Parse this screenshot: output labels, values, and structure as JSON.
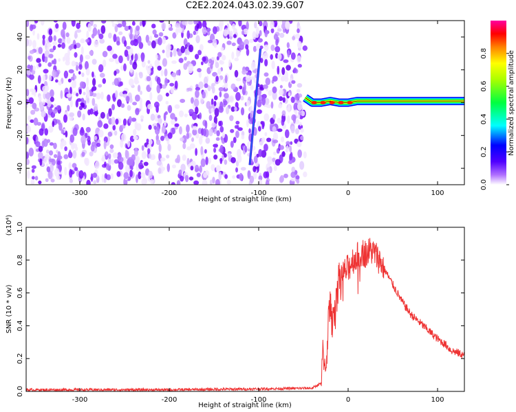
{
  "title": "C2E2.2024.043.02.39.G07",
  "chart_data": [
    {
      "type": "heatmap",
      "xlabel": "Height of straight line (km)",
      "ylabel": "Frequency (Hz)",
      "xlim": [
        -360,
        130
      ],
      "ylim": [
        -50,
        50
      ],
      "x_ticks": [
        -300,
        -200,
        -100,
        0,
        100
      ],
      "x_tick_labels": [
        "-300",
        "-200",
        "-100",
        "0",
        "100"
      ],
      "y_ticks": [
        -40,
        -20,
        0,
        20,
        40
      ],
      "y_tick_labels": [
        "-40",
        "-20",
        "0",
        "20",
        "40"
      ],
      "noise_region_x": [
        -360,
        -48
      ],
      "streak": {
        "x": [
          -110,
          -98
        ],
        "y": [
          -38,
          33
        ]
      },
      "signal_track": {
        "x": [
          -48,
          -40,
          -30,
          -20,
          -10,
          0,
          10,
          20,
          40,
          60,
          80,
          90,
          100,
          130
        ],
        "y": [
          3,
          0,
          0,
          1,
          0,
          0,
          1,
          1,
          1,
          1,
          1,
          1,
          1,
          1
        ]
      },
      "colorbar": {
        "label": "Normalized spectral amplitude",
        "range": [
          0,
          1
        ],
        "ticks": [
          0.0,
          0.2,
          0.4,
          0.6,
          0.8
        ],
        "tick_labels": [
          "0.0",
          "0.2",
          "0.4",
          "0.6",
          "0.8"
        ],
        "colors": [
          "#ffffff",
          "#7b00ff",
          "#0000ff",
          "#00ffff",
          "#00ff00",
          "#ffff00",
          "#ff7f00",
          "#ff0000",
          "#ff00a0"
        ]
      }
    },
    {
      "type": "line",
      "xlabel": "Height of straight line (km)",
      "ylabel": "SNR (10 * v/v)",
      "y_scale_label": "(x10⁴)",
      "xlim": [
        -360,
        130
      ],
      "ylim": [
        0,
        1.0
      ],
      "x_ticks": [
        -300,
        -200,
        -100,
        0,
        100
      ],
      "x_tick_labels": [
        "-300",
        "-200",
        "-100",
        "0",
        "100"
      ],
      "y_ticks": [
        0.0,
        0.2,
        0.4,
        0.6,
        0.8,
        1.0
      ],
      "y_tick_labels": [
        "0.0",
        "0.2",
        "0.4",
        "0.6",
        "0.8",
        "1.0"
      ],
      "series": [
        {
          "color": "#ee3333",
          "x": [
            -360,
            -300,
            -200,
            -100,
            -40,
            -30,
            -28,
            -26,
            -24,
            -22,
            -20,
            -18,
            -15,
            -12,
            -10,
            -5,
            0,
            5,
            10,
            15,
            20,
            25,
            30,
            35,
            40,
            45,
            50,
            55,
            60,
            70,
            80,
            90,
            100,
            105,
            110,
            115,
            120,
            125,
            130
          ],
          "y": [
            0.01,
            0.01,
            0.01,
            0.015,
            0.02,
            0.05,
            0.25,
            0.15,
            0.2,
            0.45,
            0.55,
            0.4,
            0.55,
            0.65,
            0.7,
            0.72,
            0.75,
            0.8,
            0.82,
            0.85,
            0.84,
            0.86,
            0.84,
            0.8,
            0.75,
            0.7,
            0.65,
            0.6,
            0.55,
            0.47,
            0.42,
            0.37,
            0.32,
            0.3,
            0.28,
            0.25,
            0.24,
            0.23,
            0.22
          ]
        }
      ]
    }
  ]
}
